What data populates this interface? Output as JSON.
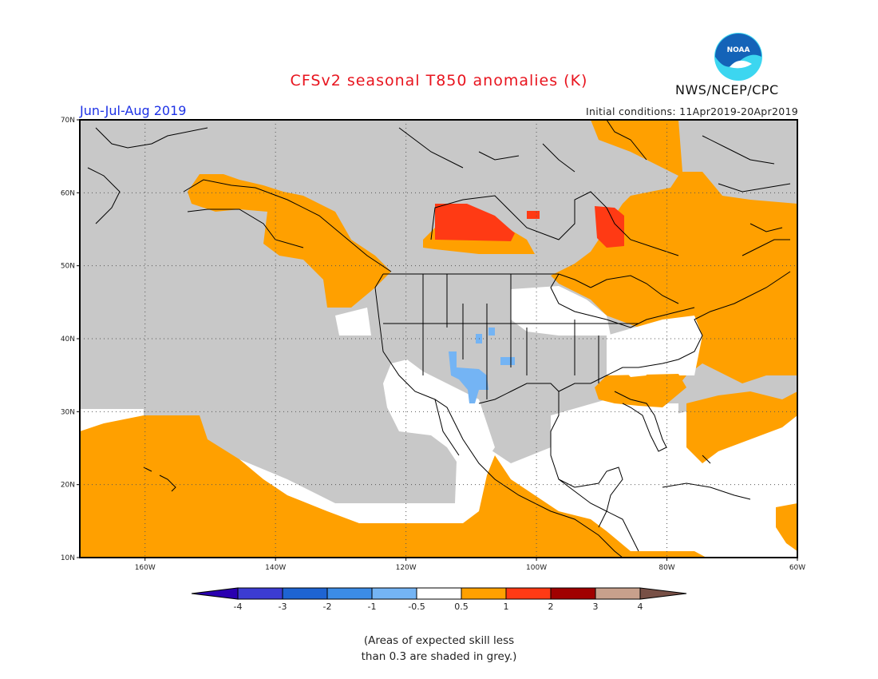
{
  "title": "CFSv2 seasonal T850 anomalies (K)",
  "season": "Jun-Jul-Aug 2019",
  "initial_conditions": "Initial conditions: 11Apr2019-20Apr2019",
  "org_label": "NWS/NCEP/CPC",
  "logo": {
    "text": "NOAA",
    "icon": "noaa-logo-icon",
    "colors": [
      "#1463b8",
      "#3cd6f0"
    ]
  },
  "map": {
    "projection": "equirectangular",
    "lon_range": [
      -170,
      -60
    ],
    "lat_range": [
      10,
      70
    ],
    "lon_ticks": [
      {
        "value": -160,
        "label": "160W"
      },
      {
        "value": -140,
        "label": "140W"
      },
      {
        "value": -120,
        "label": "120W"
      },
      {
        "value": -100,
        "label": "100W"
      },
      {
        "value": -80,
        "label": "80W"
      },
      {
        "value": -60,
        "label": "60W"
      }
    ],
    "lat_ticks": [
      {
        "value": 10,
        "label": "10N"
      },
      {
        "value": 20,
        "label": "20N"
      },
      {
        "value": 30,
        "label": "30N"
      },
      {
        "value": 40,
        "label": "40N"
      },
      {
        "value": 50,
        "label": "50N"
      },
      {
        "value": 60,
        "label": "60N"
      },
      {
        "value": 70,
        "label": "70N"
      }
    ],
    "grid": true,
    "colors": {
      "low_skill": "#c8c8c8",
      "neutral": "#ffffff",
      "c0.5to1": "#ffa000",
      "c1to2": "#ff3a14",
      "c-1to-0.5": "#74b4f4"
    }
  },
  "colorbar": {
    "labels": [
      "-4",
      "-3",
      "-2",
      "-1",
      "-0.5",
      "0.5",
      "1",
      "2",
      "3",
      "4"
    ],
    "colors": [
      "#2a00b0",
      "#3c3cd2",
      "#1e64d2",
      "#3c8ce6",
      "#74b4f4",
      "#ffffff",
      "#ffa000",
      "#ff3a14",
      "#a00000",
      "#c8a08c",
      "#785046"
    ]
  },
  "note_line1": "(Areas of expected skill less",
  "note_line2": "than 0.3 are shaded in grey.)"
}
